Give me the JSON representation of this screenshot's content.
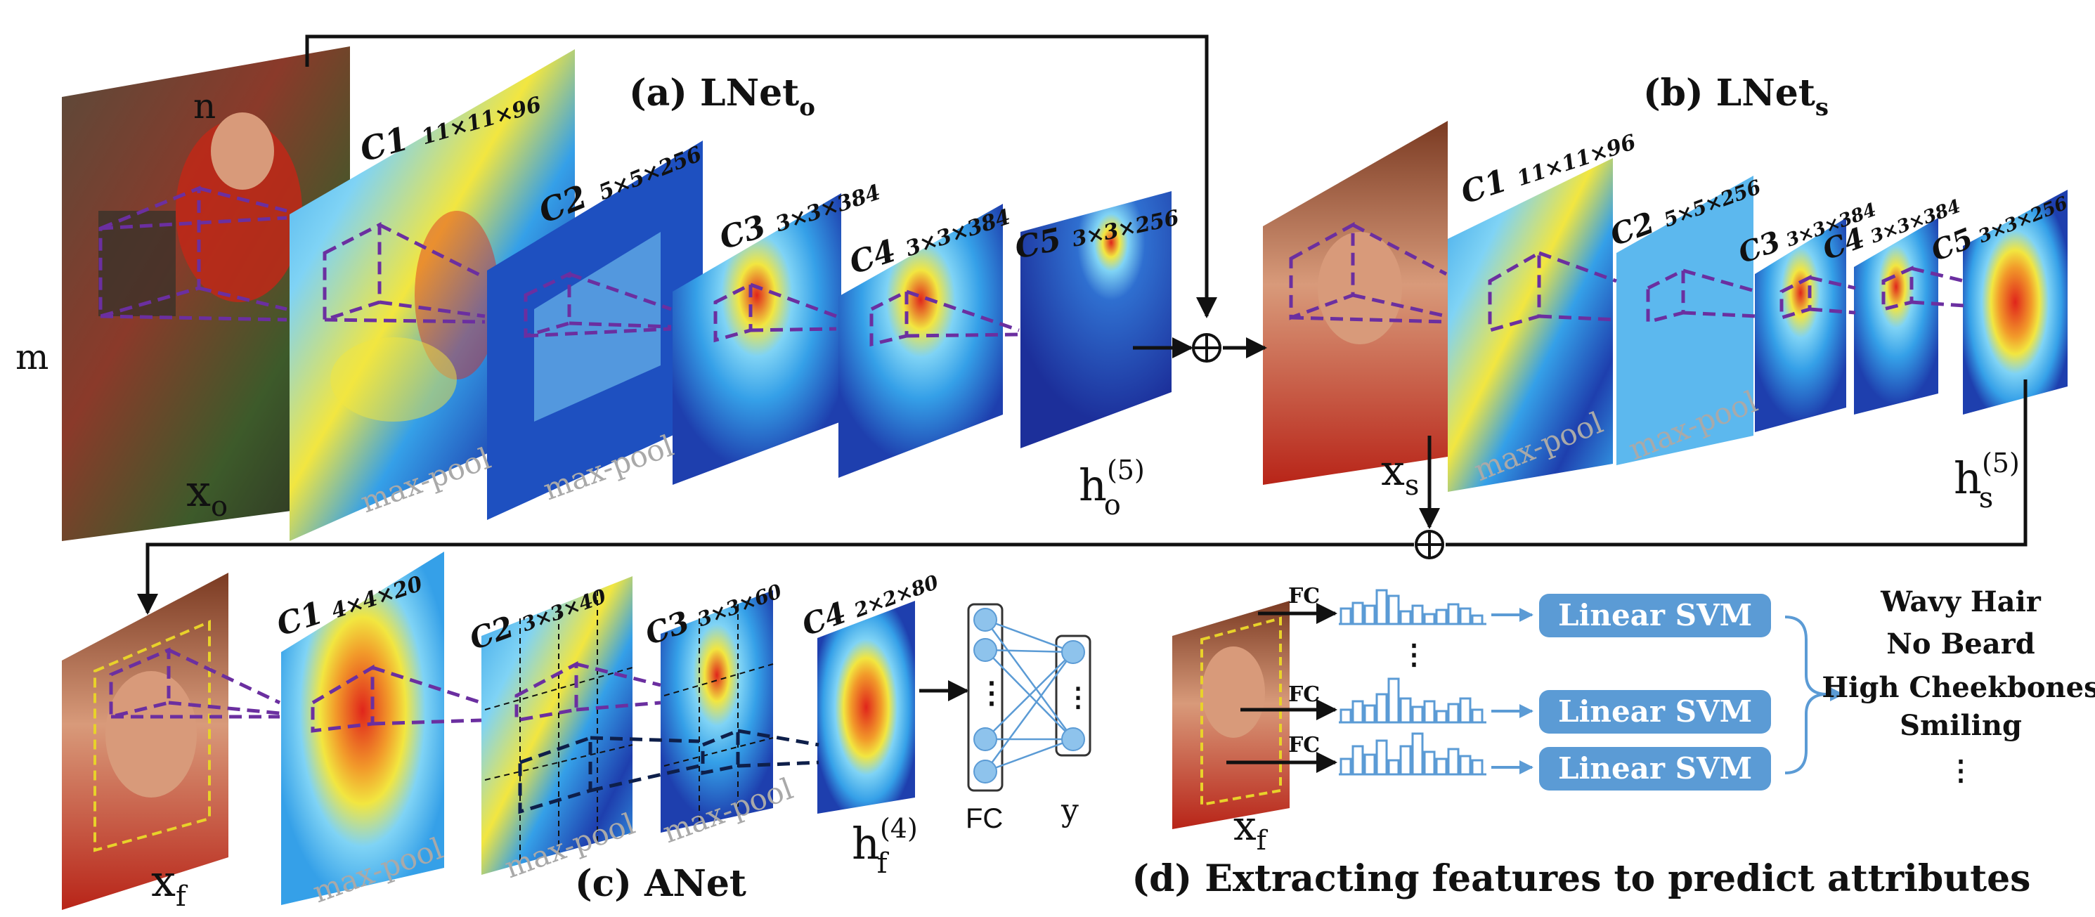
{
  "colors": {
    "fm_deep": "#1e3fae",
    "fm_mid": "#35a0e8",
    "fm_light": "#7fd3f5",
    "fm_yellow": "#f2e640",
    "fm_red": "#e0251b",
    "dash_purple": "#6b2fa0",
    "dash_navy": "#0e1f4a",
    "dash_yellow": "#e8d22a",
    "svm_blue": "#5b9bd5",
    "neuron_blue": "#8ec3ec",
    "line_black": "#111111",
    "pool_gray": "#a9a9a9"
  },
  "titles": {
    "a_main": "(a) LNet",
    "a_sub": "o",
    "b_main": "(b) LNet",
    "b_sub": "s",
    "c": "(c) ANet",
    "d": "(d) Extracting features to predict attributes"
  },
  "dims": {
    "m": "m",
    "n": "n"
  },
  "variables": {
    "x": "x",
    "h": "h",
    "sub_o": "o",
    "sub_s": "s",
    "sub_f": "f",
    "sup5": "(5)",
    "sup4": "(4)"
  },
  "lnet_o_layers": [
    {
      "name": "C1",
      "size": "11×11×96"
    },
    {
      "name": "C2",
      "size": "5×5×256"
    },
    {
      "name": "C3",
      "size": "3×3×384"
    },
    {
      "name": "C4",
      "size": "3×3×384"
    },
    {
      "name": "C5",
      "size": "3×3×256"
    }
  ],
  "lnet_s_layers": [
    {
      "name": "C1",
      "size": "11×11×96"
    },
    {
      "name": "C2",
      "size": "5×5×256"
    },
    {
      "name": "C3",
      "size": "3×3×384"
    },
    {
      "name": "C4",
      "size": "3×3×384"
    },
    {
      "name": "C5",
      "size": "3×3×256"
    }
  ],
  "anet_layers": [
    {
      "name": "C1",
      "size": "4×4×20"
    },
    {
      "name": "C2",
      "size": "3×3×40"
    },
    {
      "name": "C3",
      "size": "3×3×60"
    },
    {
      "name": "C4",
      "size": "2×2×80"
    }
  ],
  "pool_label": "max-pool",
  "fc_label": "FC",
  "y_label": "y",
  "fc_small": "FC",
  "svm_label": "Linear SVM",
  "attributes": [
    "Wavy Hair",
    "No Beard",
    "High Cheekbones",
    "Smiling"
  ],
  "plus_symbol": "⊕",
  "ellipsis_v": "⋮"
}
